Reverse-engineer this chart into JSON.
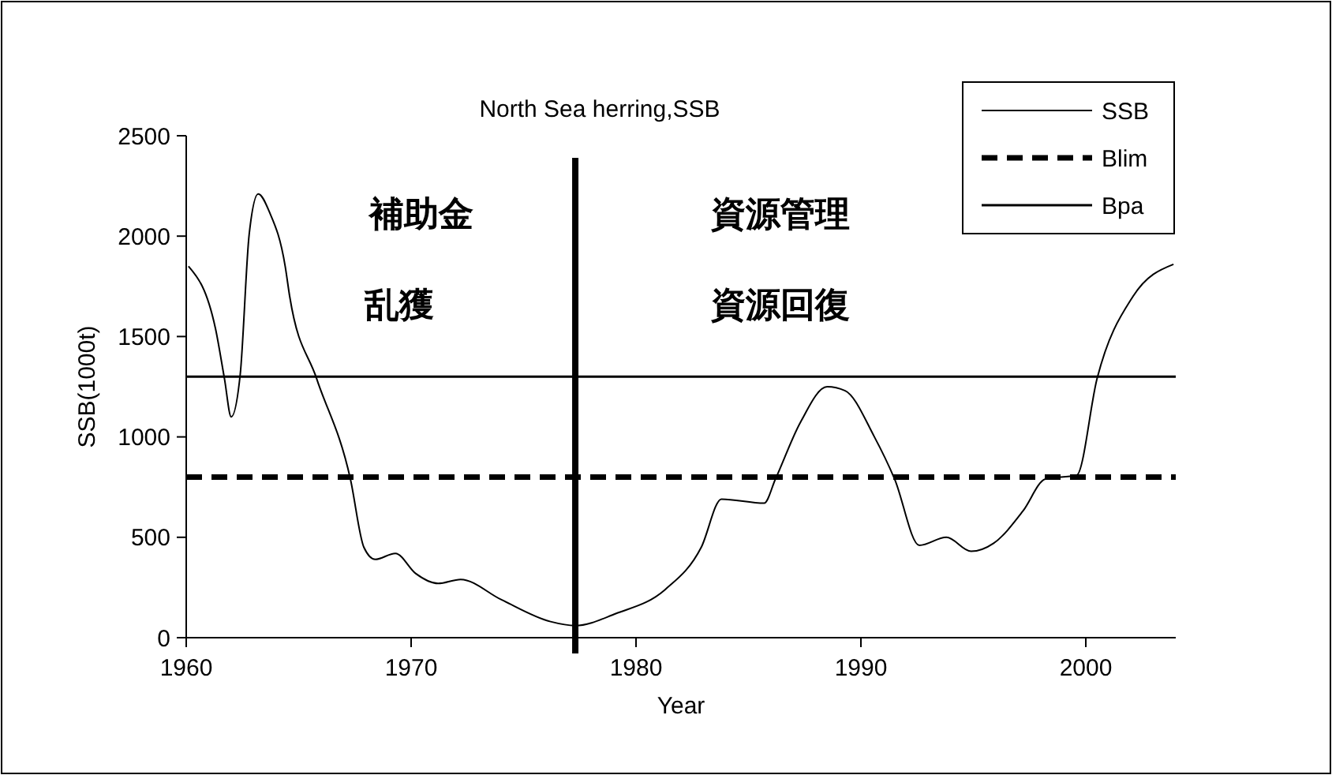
{
  "chart_data": {
    "type": "line",
    "title": "North Sea herring,SSB",
    "xlabel": "Year",
    "ylabel": "SSB(1000t)",
    "xlim": [
      1960,
      2004
    ],
    "xticks": [
      1960,
      1970,
      1980,
      1990,
      2000
    ],
    "ylim": [
      0,
      2500
    ],
    "yticks": [
      0,
      500,
      1000,
      1500,
      2000,
      2500
    ],
    "grid": false,
    "legend": "top right",
    "marker": "none",
    "series": [
      {
        "name": "SSB",
        "color": "#000000",
        "line_style": "solid",
        "x": [
          1960.1,
          1961.3,
          1961.7,
          1962.0,
          1962.4,
          1962.8,
          1963.2,
          1963.7,
          1964.4,
          1964.6,
          1965.8,
          1967.3,
          1967.9,
          1968.4,
          1969.3,
          1970.2,
          1971.2,
          1972.2,
          1974.0,
          1976.2,
          1977.3,
          1979.1,
          1981.3,
          1982.9,
          1983.8,
          1985.7,
          1986.2,
          1987.3,
          1988.5,
          1989.3,
          1990.6,
          1991.5,
          1992.6,
          1993.8,
          1994.9,
          1995.9,
          1997.2,
          1998.2,
          1999.6,
          2000.5,
          2002.1,
          2003.9
        ],
        "values": [
          1850,
          1540,
          1290,
          1100,
          1310,
          2010,
          2210,
          2120,
          1850,
          1700,
          1290,
          790,
          450,
          390,
          420,
          320,
          270,
          290,
          190,
          80,
          60,
          120,
          240,
          450,
          690,
          670,
          790,
          1070,
          1250,
          1230,
          1000,
          790,
          460,
          500,
          430,
          470,
          630,
          790,
          810,
          1290,
          1700,
          1860
        ]
      }
    ],
    "ref_lines": [
      {
        "axis": "y",
        "value": 800,
        "label": "Blim",
        "line_style": "dashed",
        "color": "#000000"
      },
      {
        "axis": "y",
        "value": 1300,
        "label": "Bpa",
        "line_style": "solid",
        "color": "#000000"
      },
      {
        "axis": "x",
        "value": 1977.3,
        "color": "#000000",
        "line_style": "solid"
      }
    ],
    "annotations": [
      "補助金",
      "乱獲",
      "資源管理",
      "資源回復"
    ]
  }
}
